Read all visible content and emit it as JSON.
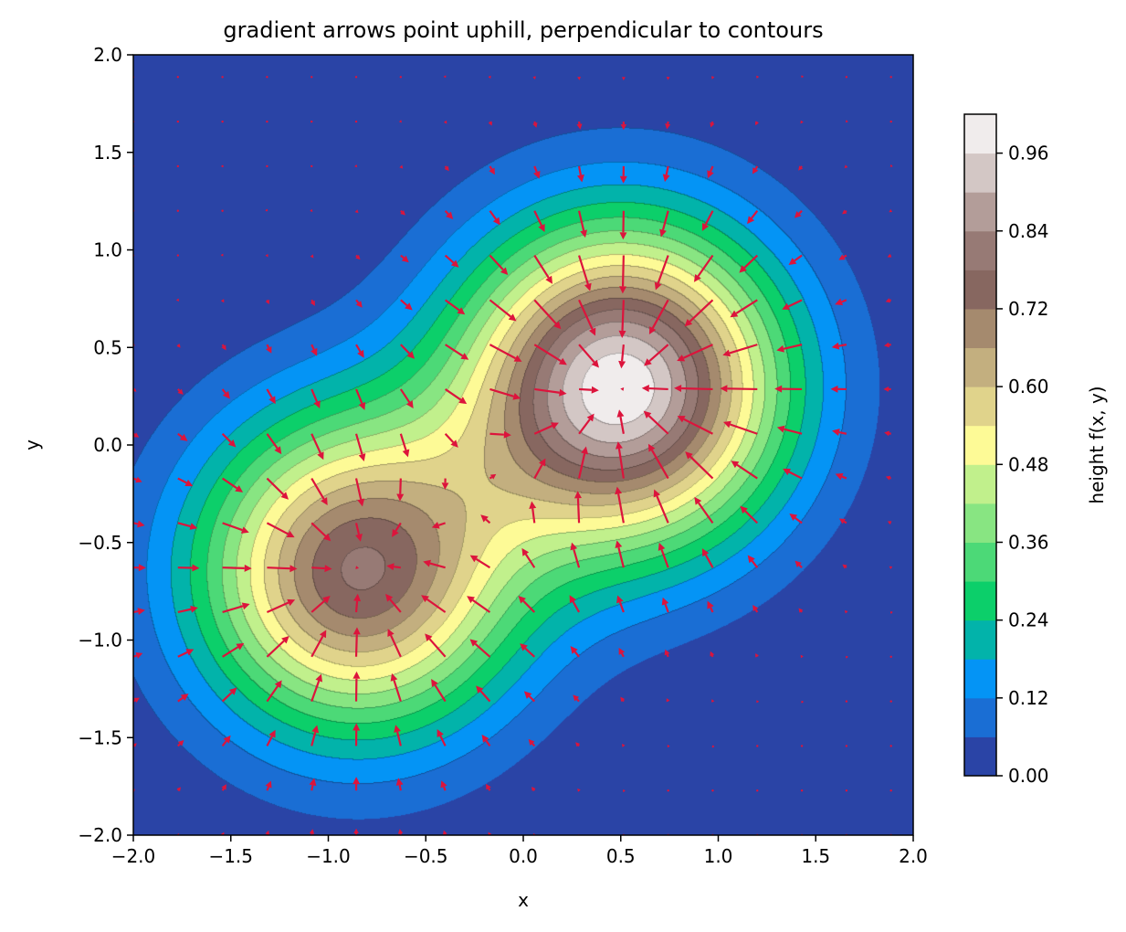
{
  "chart_data": {
    "type": "contour",
    "title": "gradient arrows point uphill, perpendicular to contours",
    "xlabel": "x",
    "ylabel": "y",
    "xlim": [
      -2.0,
      2.0
    ],
    "ylim": [
      -2.0,
      2.0
    ],
    "xticks": [
      "−2.0",
      "−1.5",
      "−1.0",
      "−0.5",
      "0.0",
      "0.5",
      "1.0",
      "1.5",
      "2.0"
    ],
    "yticks": [
      "−2.0",
      "−1.5",
      "−1.0",
      "−0.5",
      "0.0",
      "0.5",
      "1.0",
      "1.5",
      "2.0"
    ],
    "grid": false,
    "surface": {
      "peaks": [
        {
          "x": 0.5,
          "y": 0.3,
          "height": 1.0
        },
        {
          "x": -0.85,
          "y": -0.65,
          "height": 0.78
        }
      ]
    },
    "contour_levels": [
      0.0,
      0.06,
      0.12,
      0.18,
      0.24,
      0.3,
      0.36,
      0.42,
      0.48,
      0.54,
      0.6,
      0.66,
      0.72,
      0.78,
      0.84,
      0.9,
      0.96,
      1.02
    ],
    "contour_colors": [
      "#2a44a6",
      "#1a6ed4",
      "#0494f5",
      "#02b3aa",
      "#0ccf6a",
      "#4cd977",
      "#88e582",
      "#c1f08c",
      "#fdfa96",
      "#e0d38b",
      "#c3af7f",
      "#a58a6e",
      "#876760",
      "#977a75",
      "#b39d99",
      "#d3c7c5",
      "#f0ecec"
    ],
    "quiver": {
      "color": "#dc143c",
      "grid_step": 0.2286,
      "grid_count": 18
    },
    "colorbar": {
      "label": "height f(x, y)",
      "ticks": [
        "0.00",
        "0.12",
        "0.24",
        "0.36",
        "0.48",
        "0.60",
        "0.72",
        "0.84",
        "0.96"
      ],
      "range": [
        0.0,
        1.02
      ]
    }
  }
}
